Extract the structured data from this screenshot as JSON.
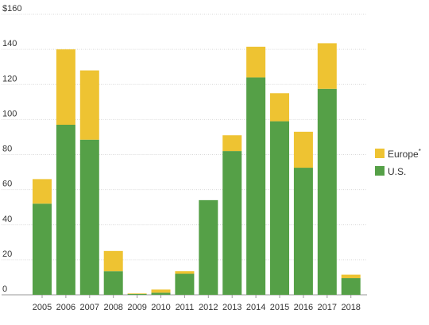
{
  "chart_data": {
    "type": "bar",
    "stacked": true,
    "categories": [
      "2005",
      "2006",
      "2007",
      "2008",
      "2009",
      "2010",
      "2011",
      "2012",
      "2013",
      "2014",
      "2015",
      "2016",
      "2017",
      "2018"
    ],
    "series": [
      {
        "name": "U.S.",
        "color": "#55a047",
        "values": [
          52,
          97,
          88.5,
          13.5,
          0.5,
          1.2,
          12,
          54,
          82,
          124,
          99,
          72.5,
          117.5,
          9.5
        ]
      },
      {
        "name": "Europe*",
        "color": "#eec332",
        "values": [
          14,
          43,
          39.5,
          11.5,
          0.3,
          1.8,
          1.5,
          0,
          9,
          17.5,
          16,
          20.5,
          26,
          2
        ]
      }
    ],
    "y_tick_labels": [
      "0",
      "20",
      "40",
      "60",
      "80",
      "100",
      "120",
      "140",
      "$160"
    ],
    "ylim": [
      0,
      160
    ],
    "grid": "horizontal",
    "legend_position": "right",
    "legend_order": [
      "Europe*",
      "U.S."
    ]
  }
}
